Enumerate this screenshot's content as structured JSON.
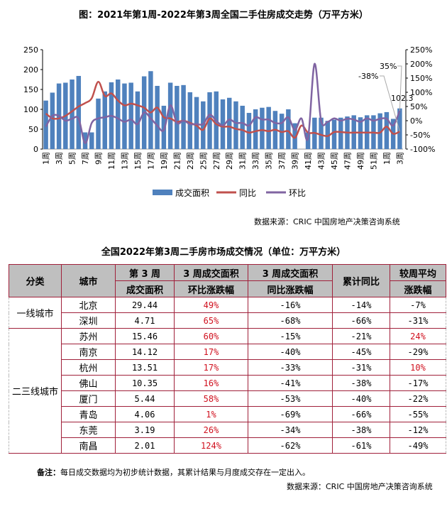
{
  "chart_title": "图：2021年第1周-2022年第3周全国二手住房成交走势（万平方米）",
  "chart_source": "数据来源：CRIC 中国房地产决策咨询系统",
  "chart_data": {
    "type": "bar+line",
    "title": "图：2021年第1周-2022年第3周全国二手住房成交走势（万平方米）",
    "categories": [
      "1周",
      "2周",
      "3周",
      "4周",
      "5周",
      "6周",
      "7周",
      "8周",
      "9周",
      "10周",
      "11周",
      "12周",
      "13周",
      "14周",
      "15周",
      "16周",
      "17周",
      "18周",
      "19周",
      "20周",
      "21周",
      "22周",
      "23周",
      "24周",
      "25周",
      "26周",
      "27周",
      "28周",
      "29周",
      "30周",
      "31周",
      "32周",
      "33周",
      "34周",
      "35周",
      "36周",
      "37周",
      "38周",
      "39周",
      "40周",
      "41周",
      "42周",
      "43周",
      "44周",
      "45周",
      "46周",
      "47周",
      "48周",
      "49周",
      "50周",
      "51周",
      "52周",
      "1周",
      "2周",
      "3周"
    ],
    "tick_labels": [
      "1周",
      "3周",
      "5周",
      "7周",
      "9周",
      "11周",
      "13周",
      "15周",
      "17周",
      "19周",
      "21周",
      "23周",
      "25周",
      "27周",
      "29周",
      "31周",
      "33周",
      "35周",
      "37周",
      "39周",
      "41周",
      "43周",
      "45周",
      "47周",
      "49周",
      "51周",
      "1周",
      "3周"
    ],
    "ylim_left": [
      0,
      250
    ],
    "yticks_left": [
      "0",
      "50",
      "100",
      "150",
      "200",
      "250"
    ],
    "ylim_right": [
      -100,
      250
    ],
    "yticks_right": [
      "-100%",
      "-50%",
      "0%",
      "50%",
      "100%",
      "150%",
      "200%",
      "250%"
    ],
    "legend_position": "bottom",
    "grid": false,
    "series": [
      {
        "name": "成交面积",
        "type": "bar",
        "axis": "left",
        "color": "#4f81bd",
        "values": [
          122,
          142,
          165,
          167,
          175,
          184,
          42,
          42,
          127,
          145,
          168,
          175,
          165,
          167,
          145,
          183,
          196,
          159,
          109,
          167,
          159,
          161,
          143,
          131,
          120,
          143,
          145,
          125,
          129,
          120,
          109,
          91,
          100,
          104,
          106,
          96,
          89,
          100,
          65,
          0,
          42,
          79,
          79,
          71,
          74,
          79,
          82,
          85,
          80,
          85,
          85,
          90,
          93,
          76,
          102.3
        ]
      },
      {
        "name": "同比",
        "type": "line",
        "axis": "right",
        "color": "#c0504d",
        "values": [
          25,
          8,
          8,
          17,
          33,
          50,
          62,
          79,
          137,
          87,
          96,
          71,
          54,
          60,
          54,
          46,
          29,
          46,
          12,
          8,
          -4,
          0,
          -8,
          -17,
          -32,
          8,
          -12,
          -21,
          -21,
          -29,
          -33,
          -42,
          -37,
          -33,
          -37,
          -32,
          -40,
          -37,
          -60,
          -17,
          -42,
          -43,
          -50,
          -54,
          -40,
          -40,
          -42,
          -42,
          -42,
          -42,
          -42,
          -42,
          -21,
          -46,
          -38
        ]
      },
      {
        "name": "环比",
        "type": "line",
        "axis": "right",
        "color": "#8064a2",
        "values": [
          -21,
          17,
          17,
          0,
          7,
          7,
          -79,
          -8,
          8,
          12,
          17,
          8,
          -4,
          4,
          -12,
          29,
          8,
          -17,
          -33,
          54,
          -8,
          0,
          -12,
          -12,
          -12,
          21,
          0,
          -17,
          4,
          -8,
          -8,
          -17,
          12,
          4,
          4,
          -8,
          -8,
          12,
          -33,
          8,
          -62,
          200,
          0,
          -4,
          8,
          0,
          7,
          4,
          -4,
          8,
          0,
          7,
          7,
          -17,
          35
        ]
      }
    ],
    "annotations": [
      "-38%",
      "35%",
      "102.3"
    ]
  },
  "table": {
    "title": "全国2022年第3周二手房市场成交情况（单位：万平方米）",
    "headers": [
      [
        "分类"
      ],
      [
        "城市"
      ],
      [
        "第 3 周",
        "成交面积"
      ],
      [
        "3 周成交面积",
        "环比涨跌幅"
      ],
      [
        "3 周成交面积",
        "同比涨跌幅"
      ],
      [
        "累计同比"
      ],
      [
        "较周平均",
        "涨跌幅"
      ]
    ],
    "groups": [
      {
        "name": "一线城市",
        "rows": [
          [
            "北京",
            "29.44",
            "49%",
            "-16%",
            "-14%",
            "-7%"
          ],
          [
            "深圳",
            "4.71",
            "65%",
            "-68%",
            "-66%",
            "-31%"
          ]
        ]
      },
      {
        "name": "二三线城市",
        "rows": [
          [
            "苏州",
            "15.46",
            "60%",
            "-15%",
            "-21%",
            "24%"
          ],
          [
            "南京",
            "14.12",
            "17%",
            "-40%",
            "-45%",
            "-29%"
          ],
          [
            "杭州",
            "13.51",
            "17%",
            "-33%",
            "-31%",
            "10%"
          ],
          [
            "佛山",
            "10.35",
            "16%",
            "-41%",
            "-38%",
            "-17%"
          ],
          [
            "厦门",
            "5.44",
            "58%",
            "-53%",
            "-40%",
            "-22%"
          ],
          [
            "青岛",
            "4.06",
            "1%",
            "-69%",
            "-66%",
            "-55%"
          ],
          [
            "东莞",
            "3.19",
            "26%",
            "-34%",
            "-38%",
            "-12%"
          ],
          [
            "南昌",
            "2.01",
            "124%",
            "-62%",
            "-61%",
            "-49%"
          ]
        ]
      }
    ],
    "positive_color": "#d0101e"
  },
  "note_label": "备注：",
  "note_text": "每日成交数据均为初步统计数据，其累计结果与月度成交存在一定出入。",
  "table_source": "数据来源：CRIC 中国房地产决策咨询系统"
}
